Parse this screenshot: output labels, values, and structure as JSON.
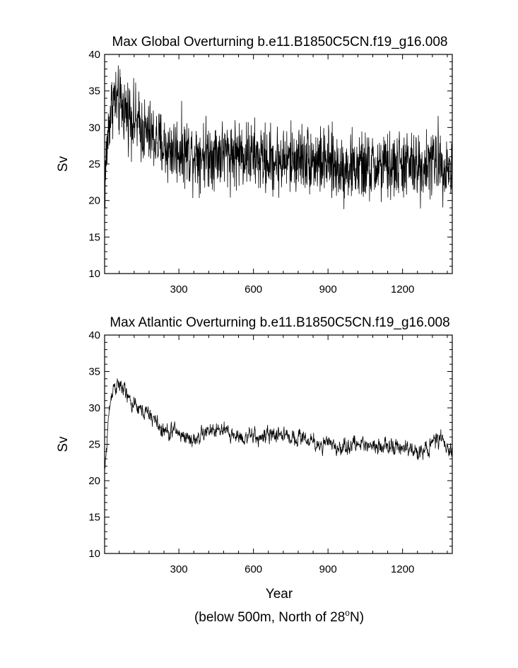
{
  "figure": {
    "xlabel": "Year",
    "note": "(below 500m, North of 28",
    "note_sup": "o",
    "note_tail": "N)"
  },
  "chart_data": [
    {
      "type": "line",
      "title": "Max Global Overturning b.e11.B1850C5CN.f19_g16.008",
      "xlabel": "",
      "ylabel": "Sv",
      "xlim": [
        1,
        1400
      ],
      "ylim": [
        10,
        40
      ],
      "xticks": [
        300,
        600,
        900,
        1200
      ],
      "yticks": [
        10,
        15,
        20,
        25,
        30,
        35,
        40
      ],
      "grid": false,
      "line_color": "#000000",
      "noise_amplitude": 2.3,
      "series": [
        {
          "x": [
            1,
            10,
            20,
            35,
            50,
            65,
            80,
            100,
            130,
            160,
            200,
            250,
            300,
            350,
            400,
            450,
            500,
            550,
            600,
            650,
            700,
            750,
            800,
            850,
            900,
            950,
            1000,
            1050,
            1100,
            1150,
            1200,
            1250,
            1300,
            1350,
            1400
          ],
          "values": [
            21.5,
            27,
            31,
            34,
            33.5,
            33,
            32.5,
            32,
            30.5,
            29.5,
            28.5,
            27,
            27,
            26.5,
            26.5,
            26.5,
            26.5,
            26.5,
            26,
            25.5,
            25.5,
            25.5,
            26,
            25.5,
            25,
            24.5,
            24.5,
            24.5,
            24.5,
            24.5,
            25,
            24.5,
            25,
            25.5,
            24
          ]
        }
      ]
    },
    {
      "type": "line",
      "title": "Max Atlantic Overturning b.e11.B1850C5CN.f19_g16.008",
      "xlabel": "Year",
      "ylabel": "Sv",
      "xlim": [
        1,
        1400
      ],
      "ylim": [
        10,
        40
      ],
      "xticks": [
        300,
        600,
        900,
        1200
      ],
      "yticks": [
        10,
        15,
        20,
        25,
        30,
        35,
        40
      ],
      "grid": false,
      "line_color": "#000000",
      "noise_amplitude": 0.75,
      "series": [
        {
          "x": [
            1,
            8,
            15,
            25,
            35,
            50,
            65,
            80,
            100,
            130,
            160,
            200,
            230,
            260,
            280,
            300,
            330,
            360,
            400,
            450,
            500,
            550,
            600,
            650,
            700,
            750,
            800,
            850,
            900,
            950,
            1000,
            1050,
            1100,
            1150,
            1200,
            1250,
            1300,
            1330,
            1360,
            1385,
            1400
          ],
          "values": [
            21,
            24,
            28,
            31,
            33,
            33,
            33,
            32.5,
            31,
            30,
            29.5,
            28.5,
            27,
            26.5,
            27,
            26.5,
            26,
            25.5,
            26.5,
            27,
            26.5,
            26,
            26,
            26,
            26.5,
            26,
            26,
            25,
            25,
            24.5,
            25,
            25,
            25,
            24.5,
            24.5,
            24,
            24.5,
            25.5,
            25.5,
            24,
            24
          ]
        }
      ]
    }
  ]
}
